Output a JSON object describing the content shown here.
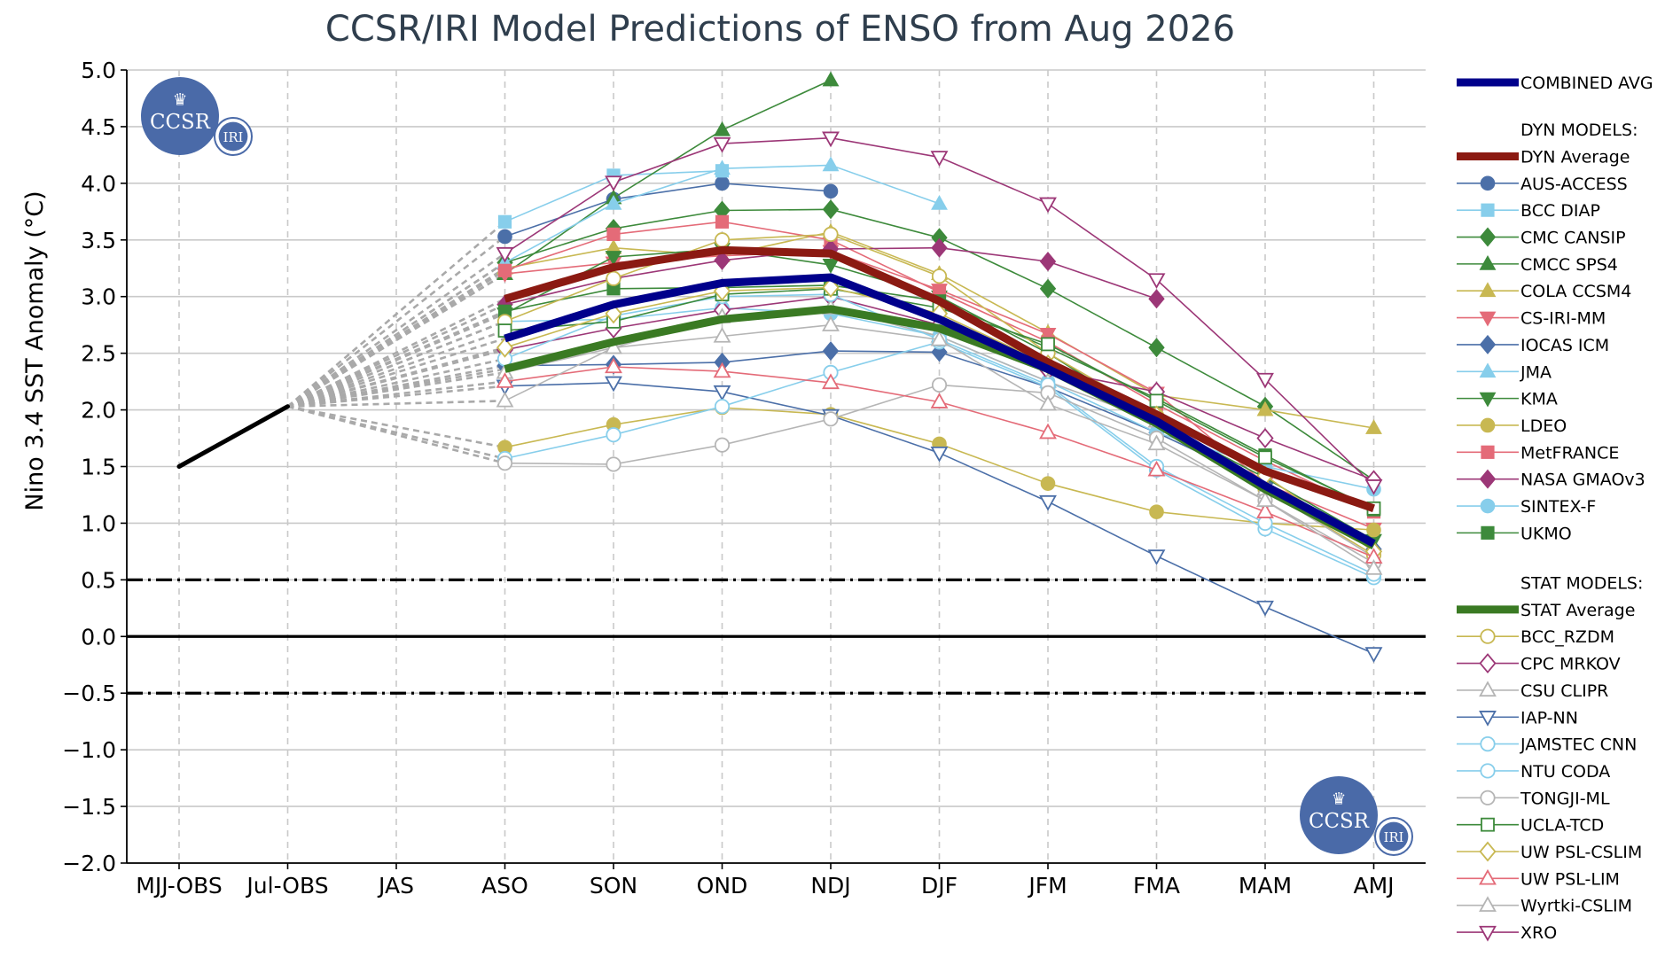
{
  "chart_data": {
    "type": "line",
    "title": "CCSR/IRI Model Predictions of ENSO from Aug 2026",
    "ylabel": "Nino 3.4 SST Anomaly (°C)",
    "xlabel": "",
    "categories": [
      "MJJ-OBS",
      "Jul-OBS",
      "JAS",
      "ASO",
      "SON",
      "OND",
      "NDJ",
      "DJF",
      "JFM",
      "FMA",
      "MAM",
      "AMJ"
    ],
    "ylim": [
      -2.0,
      5.0
    ],
    "yticks": [
      "5.0",
      "4.5",
      "4.0",
      "3.5",
      "3.0",
      "2.5",
      "2.0",
      "1.5",
      "1.0",
      "0.5",
      "0.0",
      "−0.5",
      "−1.0",
      "−1.5",
      "−2.0"
    ],
    "ytick_values": [
      5.0,
      4.5,
      4.0,
      3.5,
      3.0,
      2.5,
      2.0,
      1.5,
      1.0,
      0.5,
      0.0,
      -0.5,
      -1.0,
      -1.5,
      -2.0
    ],
    "grid": "horizontal solid, vertical dashed",
    "legend_position": "right, outside",
    "reference_lines": [
      0.5,
      0.0,
      -0.5
    ],
    "observed": [
      1.5,
      2.03
    ],
    "combined": {
      "name": "COMBINED AVG",
      "color": "#00008b",
      "values": [
        null,
        null,
        null,
        2.63,
        2.93,
        3.12,
        3.17,
        2.8,
        2.36,
        1.9,
        1.33,
        0.82
      ]
    },
    "dyn_header": "DYN MODELS:",
    "dyn_average": {
      "name": "DYN Average",
      "color": "#8b1a12",
      "values": [
        null,
        null,
        null,
        2.98,
        3.26,
        3.41,
        3.38,
        2.96,
        2.42,
        1.96,
        1.46,
        1.13
      ]
    },
    "dyn_models": [
      {
        "name": "AUS-ACCESS",
        "color": "#4b6fa8",
        "marker": "circle",
        "fill": "filled",
        "values": [
          null,
          null,
          null,
          3.53,
          3.86,
          4.0,
          3.93,
          null,
          null,
          null,
          null,
          null
        ]
      },
      {
        "name": "BCC DIAP",
        "color": "#87ceeb",
        "marker": "square",
        "fill": "filled",
        "values": [
          null,
          null,
          null,
          3.66,
          4.07,
          4.11,
          null,
          null,
          null,
          null,
          null,
          null
        ]
      },
      {
        "name": "CMC CANSIP",
        "color": "#3d8a3b",
        "marker": "diamond",
        "fill": "filled",
        "values": [
          null,
          null,
          null,
          3.3,
          3.6,
          3.76,
          3.77,
          3.52,
          3.07,
          2.55,
          2.03,
          1.38
        ]
      },
      {
        "name": "CMCC SPS4",
        "color": "#3d8a3b",
        "marker": "triangle-up",
        "fill": "filled",
        "values": [
          null,
          null,
          null,
          3.2,
          3.87,
          4.47,
          4.91,
          null,
          null,
          null,
          null,
          null
        ]
      },
      {
        "name": "COLA CCSM4",
        "color": "#c8b852",
        "marker": "triangle-up",
        "fill": "filled",
        "values": [
          null,
          null,
          null,
          3.25,
          3.43,
          3.36,
          3.57,
          3.2,
          2.68,
          2.13,
          2.0,
          1.84
        ]
      },
      {
        "name": "CS-IRI-MM",
        "color": "#e46b78",
        "marker": "triangle-down",
        "fill": "filled",
        "values": [
          null,
          null,
          null,
          3.2,
          3.3,
          3.36,
          3.4,
          3.06,
          2.67,
          2.15,
          1.35,
          0.95
        ]
      },
      {
        "name": "IOCAS ICM",
        "color": "#4b6fa8",
        "marker": "diamond",
        "fill": "filled",
        "values": [
          null,
          null,
          null,
          2.39,
          2.4,
          2.42,
          2.52,
          2.51,
          2.2,
          1.8,
          1.35,
          0.77
        ]
      },
      {
        "name": "JMA",
        "color": "#87ceeb",
        "marker": "triangle-up",
        "fill": "filled",
        "values": [
          null,
          null,
          null,
          3.3,
          3.82,
          4.13,
          4.16,
          3.82,
          null,
          null,
          null,
          null
        ]
      },
      {
        "name": "KMA",
        "color": "#3d8a3b",
        "marker": "triangle-down",
        "fill": "filled",
        "values": [
          null,
          null,
          null,
          2.85,
          3.35,
          3.42,
          3.28,
          3.0,
          2.5,
          1.9,
          1.4,
          0.85
        ]
      },
      {
        "name": "LDEO",
        "color": "#c8b852",
        "marker": "circle",
        "fill": "filled",
        "values": [
          null,
          null,
          null,
          1.67,
          1.87,
          2.02,
          1.96,
          1.7,
          1.35,
          1.1,
          1.0,
          0.94
        ]
      },
      {
        "name": "MetFRANCE",
        "color": "#e46b78",
        "marker": "square",
        "fill": "filled",
        "values": [
          null,
          null,
          null,
          3.23,
          3.55,
          3.66,
          3.5,
          3.04,
          2.6,
          2.05,
          1.55,
          1.1
        ]
      },
      {
        "name": "NASA GMAOv3",
        "color": "#9c3777",
        "marker": "diamond",
        "fill": "filled",
        "values": [
          null,
          null,
          null,
          2.93,
          3.16,
          3.32,
          3.42,
          3.43,
          3.31,
          2.98,
          null,
          null
        ]
      },
      {
        "name": "SINTEX-F",
        "color": "#87ceeb",
        "marker": "circle",
        "fill": "filled",
        "values": [
          null,
          null,
          null,
          2.78,
          2.8,
          2.9,
          2.85,
          2.65,
          2.25,
          1.8,
          1.5,
          1.3
        ]
      },
      {
        "name": "UKMO",
        "color": "#3d8a3b",
        "marker": "square",
        "fill": "filled",
        "values": [
          null,
          null,
          null,
          2.87,
          3.07,
          3.08,
          3.1,
          2.96,
          2.55,
          2.1,
          1.6,
          1.12
        ]
      }
    ],
    "stat_header": "STAT MODELS:",
    "stat_average": {
      "name": "STAT Average",
      "color": "#3a7a23",
      "values": [
        null,
        null,
        null,
        2.36,
        2.6,
        2.8,
        2.89,
        2.72,
        2.36,
        1.88,
        1.3,
        0.8
      ]
    },
    "stat_models": [
      {
        "name": "BCC_RZDM",
        "color": "#c8b852",
        "marker": "circle",
        "fill": "open",
        "values": [
          null,
          null,
          null,
          2.78,
          3.16,
          3.5,
          3.55,
          3.18,
          2.5,
          1.95,
          1.3,
          0.72
        ]
      },
      {
        "name": "CPC MRKOV",
        "color": "#9c3777",
        "marker": "diamond",
        "fill": "open",
        "values": [
          null,
          null,
          null,
          2.53,
          2.72,
          2.88,
          3.0,
          2.75,
          2.35,
          2.16,
          1.75,
          1.38
        ]
      },
      {
        "name": "CSU CLIPR",
        "color": "#b5b5b5",
        "marker": "triangle-up",
        "fill": "open",
        "values": [
          null,
          null,
          null,
          2.33,
          2.55,
          2.82,
          2.9,
          2.65,
          2.25,
          1.9,
          1.3,
          0.7
        ]
      },
      {
        "name": "IAP-NN",
        "color": "#4b6fa8",
        "marker": "triangle-down",
        "fill": "open",
        "values": [
          null,
          null,
          null,
          2.21,
          2.24,
          2.16,
          1.95,
          1.62,
          1.19,
          0.71,
          0.26,
          -0.15
        ]
      },
      {
        "name": "JAMSTEC CNN",
        "color": "#87ceeb",
        "marker": "circle",
        "fill": "open",
        "values": [
          null,
          null,
          null,
          1.57,
          1.78,
          2.03,
          2.33,
          2.6,
          2.2,
          1.47,
          0.95,
          0.52
        ]
      },
      {
        "name": "NTU CODA",
        "color": "#87ceeb",
        "marker": "circle",
        "fill": "open",
        "values": [
          null,
          null,
          null,
          2.45,
          2.83,
          3.0,
          3.02,
          2.62,
          2.22,
          1.5,
          1.0,
          0.55
        ]
      },
      {
        "name": "TONGJI-ML",
        "color": "#b5b5b5",
        "marker": "circle",
        "fill": "open",
        "values": [
          null,
          null,
          null,
          1.53,
          1.52,
          1.69,
          1.92,
          2.22,
          2.15,
          1.75,
          1.2,
          0.65
        ]
      },
      {
        "name": "UCLA-TCD",
        "color": "#3d8a3b",
        "marker": "square",
        "fill": "open",
        "values": [
          null,
          null,
          null,
          2.7,
          2.78,
          3.02,
          3.07,
          2.9,
          2.58,
          2.08,
          1.58,
          1.13
        ]
      },
      {
        "name": "UW PSL-CSLIM",
        "color": "#c8b852",
        "marker": "diamond",
        "fill": "open",
        "values": [
          null,
          null,
          null,
          2.55,
          2.85,
          3.05,
          3.08,
          2.85,
          2.4,
          1.95,
          1.42,
          0.75
        ]
      },
      {
        "name": "UW PSL-LIM",
        "color": "#e46b78",
        "marker": "triangle-up",
        "fill": "open",
        "values": [
          null,
          null,
          null,
          2.25,
          2.38,
          2.34,
          2.24,
          2.07,
          1.8,
          1.47,
          1.1,
          0.7
        ]
      },
      {
        "name": "Wyrtki-CSLIM",
        "color": "#b5b5b5",
        "marker": "triangle-up",
        "fill": "open",
        "values": [
          null,
          null,
          null,
          2.08,
          2.55,
          2.65,
          2.75,
          2.62,
          2.05,
          1.7,
          1.2,
          0.6
        ]
      },
      {
        "name": "XRO",
        "color": "#9c3777",
        "marker": "triangle-down",
        "fill": "open",
        "values": [
          null,
          null,
          null,
          3.38,
          4.01,
          4.35,
          4.4,
          4.23,
          3.82,
          3.15,
          2.27,
          1.33
        ]
      }
    ],
    "logo_text": "CCSR",
    "logo_small_text": "IRI"
  }
}
